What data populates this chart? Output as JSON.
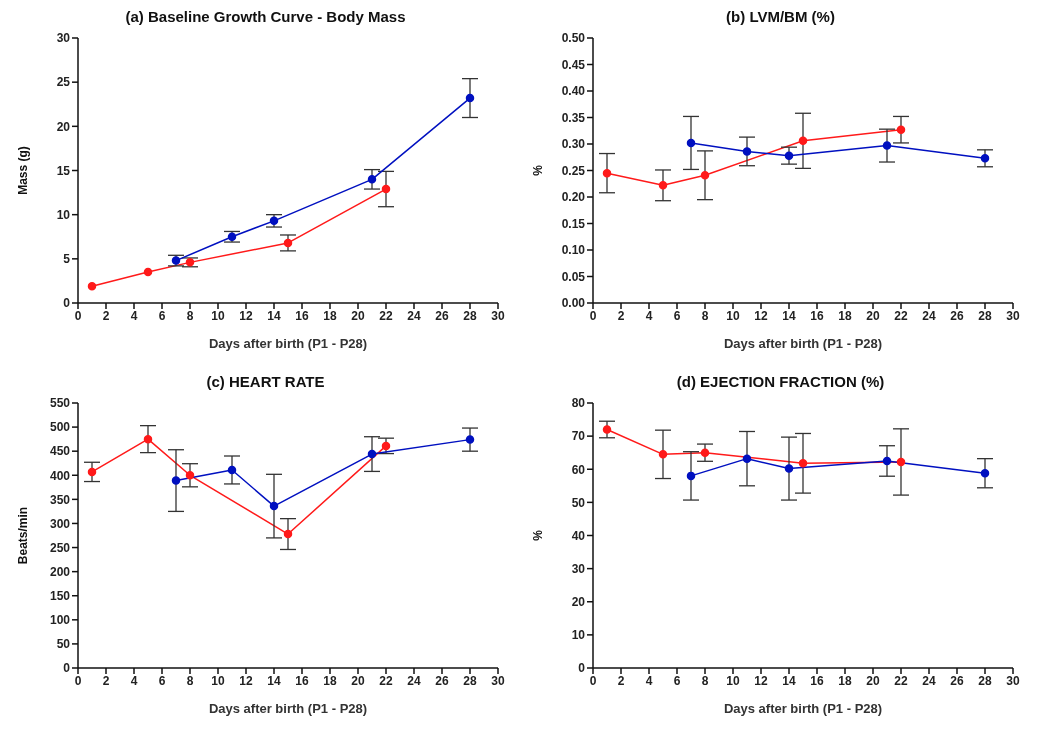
{
  "chart_data": [
    {
      "type": "line",
      "title": "(a) Baseline Growth Curve - Body Mass",
      "xlabel": "Days after birth (P1 - P28)",
      "ylabel": "Mass (g)",
      "xlim": [
        0,
        30
      ],
      "xticks": [
        0,
        2,
        4,
        6,
        8,
        10,
        12,
        14,
        16,
        18,
        20,
        22,
        24,
        26,
        28,
        30
      ],
      "ylim": [
        0,
        30
      ],
      "yticks": [
        0,
        5,
        10,
        15,
        20,
        25,
        30
      ],
      "grid": false,
      "marker": "circle",
      "line_style": "solid",
      "series": [
        {
          "color": "#ff1a1a",
          "x": [
            1,
            5,
            8,
            15,
            22
          ],
          "values": [
            1.9,
            3.5,
            4.6,
            6.8,
            12.9
          ],
          "errors": [
            null,
            null,
            0.5,
            0.9,
            2.0
          ]
        },
        {
          "color": "#0010c0",
          "x": [
            7,
            11,
            14,
            21,
            28
          ],
          "values": [
            4.8,
            7.5,
            9.3,
            14.0,
            23.2
          ],
          "errors": [
            0.6,
            0.6,
            0.7,
            1.1,
            2.2
          ]
        }
      ]
    },
    {
      "type": "line",
      "title": "(b) LVM/BM (%)",
      "xlabel": "Days after birth (P1 - P28)",
      "ylabel": "%",
      "xlim": [
        0,
        30
      ],
      "xticks": [
        0,
        2,
        4,
        6,
        8,
        10,
        12,
        14,
        16,
        18,
        20,
        22,
        24,
        26,
        28,
        30
      ],
      "ylim": [
        0,
        0.5
      ],
      "yticks": [
        {
          "value": 0,
          "label": "0.00"
        },
        {
          "value": 0.05,
          "label": "0.05"
        },
        {
          "value": 0.1,
          "label": "0.10"
        },
        {
          "value": 0.15,
          "label": "0.15"
        },
        {
          "value": 0.2,
          "label": "0.20"
        },
        {
          "value": 0.25,
          "label": "0.25"
        },
        {
          "value": 0.3,
          "label": "0.30"
        },
        {
          "value": 0.35,
          "label": "0.35"
        },
        {
          "value": 0.4,
          "label": "0.40"
        },
        {
          "value": 0.45,
          "label": "0.45"
        },
        {
          "value": 0.5,
          "label": "0.50"
        }
      ],
      "grid": false,
      "marker": "circle",
      "line_style": "solid",
      "series": [
        {
          "color": "#ff1a1a",
          "x": [
            1,
            5,
            8,
            15,
            22
          ],
          "values": [
            0.245,
            0.222,
            0.241,
            0.306,
            0.327
          ],
          "errors": [
            0.037,
            0.029,
            0.046,
            0.052,
            0.025
          ]
        },
        {
          "color": "#0010c0",
          "x": [
            7,
            11,
            14,
            21,
            28
          ],
          "values": [
            0.302,
            0.286,
            0.278,
            0.297,
            0.273
          ],
          "errors": [
            0.05,
            0.027,
            0.016,
            0.031,
            0.016
          ]
        }
      ]
    },
    {
      "type": "line",
      "title": "(c) HEART RATE",
      "xlabel": "Days after birth (P1 - P28)",
      "ylabel": "Beats/min",
      "xlim": [
        0,
        30
      ],
      "xticks": [
        0,
        2,
        4,
        6,
        8,
        10,
        12,
        14,
        16,
        18,
        20,
        22,
        24,
        26,
        28,
        30
      ],
      "ylim": [
        0,
        550
      ],
      "yticks": [
        0,
        50,
        100,
        150,
        200,
        250,
        300,
        350,
        400,
        450,
        500,
        550
      ],
      "grid": false,
      "marker": "circle",
      "line_style": "solid",
      "series": [
        {
          "color": "#ff1a1a",
          "x": [
            1,
            5,
            8,
            15,
            22
          ],
          "values": [
            407,
            475,
            400,
            278,
            461
          ],
          "errors": [
            20,
            28,
            24,
            32,
            16
          ]
        },
        {
          "color": "#0010c0",
          "x": [
            7,
            11,
            14,
            21,
            28
          ],
          "values": [
            389,
            411,
            336,
            444,
            474
          ],
          "errors": [
            64,
            29,
            66,
            36,
            24
          ]
        }
      ]
    },
    {
      "type": "line",
      "title": "(d) EJECTION FRACTION (%)",
      "xlabel": "Days after birth (P1 - P28)",
      "ylabel": "%",
      "xlim": [
        0,
        30
      ],
      "xticks": [
        0,
        2,
        4,
        6,
        8,
        10,
        12,
        14,
        16,
        18,
        20,
        22,
        24,
        26,
        28,
        30
      ],
      "ylim": [
        0,
        80
      ],
      "yticks": [
        0,
        10,
        20,
        30,
        40,
        50,
        60,
        70,
        80
      ],
      "grid": false,
      "marker": "circle",
      "line_style": "solid",
      "series": [
        {
          "color": "#ff1a1a",
          "x": [
            1,
            5,
            8,
            15,
            22
          ],
          "values": [
            72,
            64.5,
            65,
            61.8,
            62.2
          ],
          "errors": [
            2.5,
            7.3,
            2.6,
            9,
            10
          ]
        },
        {
          "color": "#0010c0",
          "x": [
            7,
            11,
            14,
            21,
            28
          ],
          "values": [
            58,
            63.2,
            60.2,
            62.5,
            58.8
          ],
          "errors": [
            7.3,
            8.2,
            9.5,
            4.6,
            4.4
          ]
        }
      ]
    }
  ]
}
